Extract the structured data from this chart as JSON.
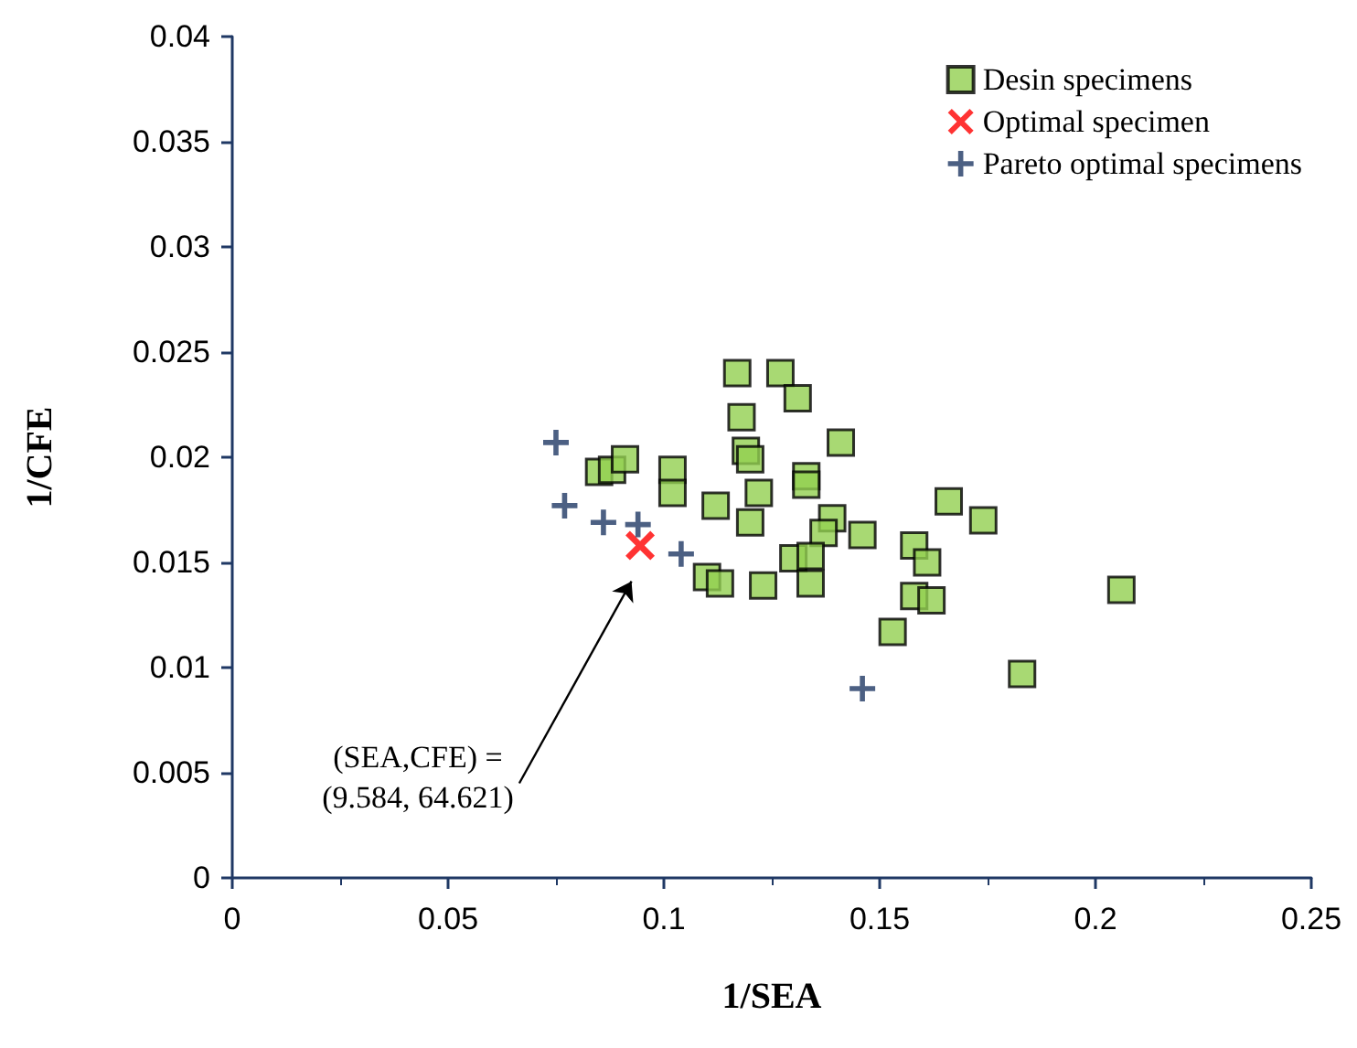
{
  "chart_data": {
    "type": "scatter",
    "xlabel": "1/SEA",
    "ylabel": "1/CFE",
    "xlim": [
      0,
      0.25
    ],
    "xticks": [
      0,
      0.05,
      0.1,
      0.15,
      0.2,
      0.25
    ],
    "ylim": [
      0,
      0.04
    ],
    "yticks": [
      0,
      0.005,
      0.01,
      0.015,
      0.02,
      0.025,
      0.03,
      0.035,
      0.04
    ],
    "grid": false,
    "legend": "top right",
    "annotations": [
      "(SEA,CFE) =\n(9.584, 64.621)"
    ],
    "series": [
      {
        "name": "Desin specimens",
        "color": "#92d050",
        "marker": "square",
        "x": [
          0.117,
          0.127,
          0.131,
          0.118,
          0.119,
          0.12,
          0.141,
          0.085,
          0.088,
          0.091,
          0.102,
          0.102,
          0.112,
          0.122,
          0.12,
          0.133,
          0.133,
          0.139,
          0.137,
          0.146,
          0.13,
          0.134,
          0.134,
          0.11,
          0.113,
          0.123,
          0.166,
          0.174,
          0.158,
          0.161,
          0.158,
          0.162,
          0.153,
          0.183,
          0.206
        ],
        "values": [
          0.024,
          0.024,
          0.0228,
          0.0219,
          0.0203,
          0.0199,
          0.0207,
          0.0193,
          0.0194,
          0.0199,
          0.0194,
          0.0183,
          0.0177,
          0.0183,
          0.0169,
          0.0191,
          0.0187,
          0.0171,
          0.0164,
          0.0163,
          0.0152,
          0.0153,
          0.014,
          0.0143,
          0.014,
          0.0139,
          0.0179,
          0.017,
          0.0158,
          0.015,
          0.0134,
          0.0132,
          0.0117,
          0.0097,
          0.0137
        ]
      },
      {
        "name": "Optimal specimen",
        "color": "#ff0000",
        "marker": "x",
        "x": [
          0.0945
        ],
        "values": [
          0.0158
        ]
      },
      {
        "name": "Pareto optimal specimens",
        "color": "#1f3864",
        "marker": "cross",
        "x": [
          0.075,
          0.077,
          0.086,
          0.094,
          0.104,
          0.146
        ],
        "values": [
          0.0207,
          0.0177,
          0.0169,
          0.0168,
          0.0154,
          0.009
        ]
      }
    ]
  }
}
